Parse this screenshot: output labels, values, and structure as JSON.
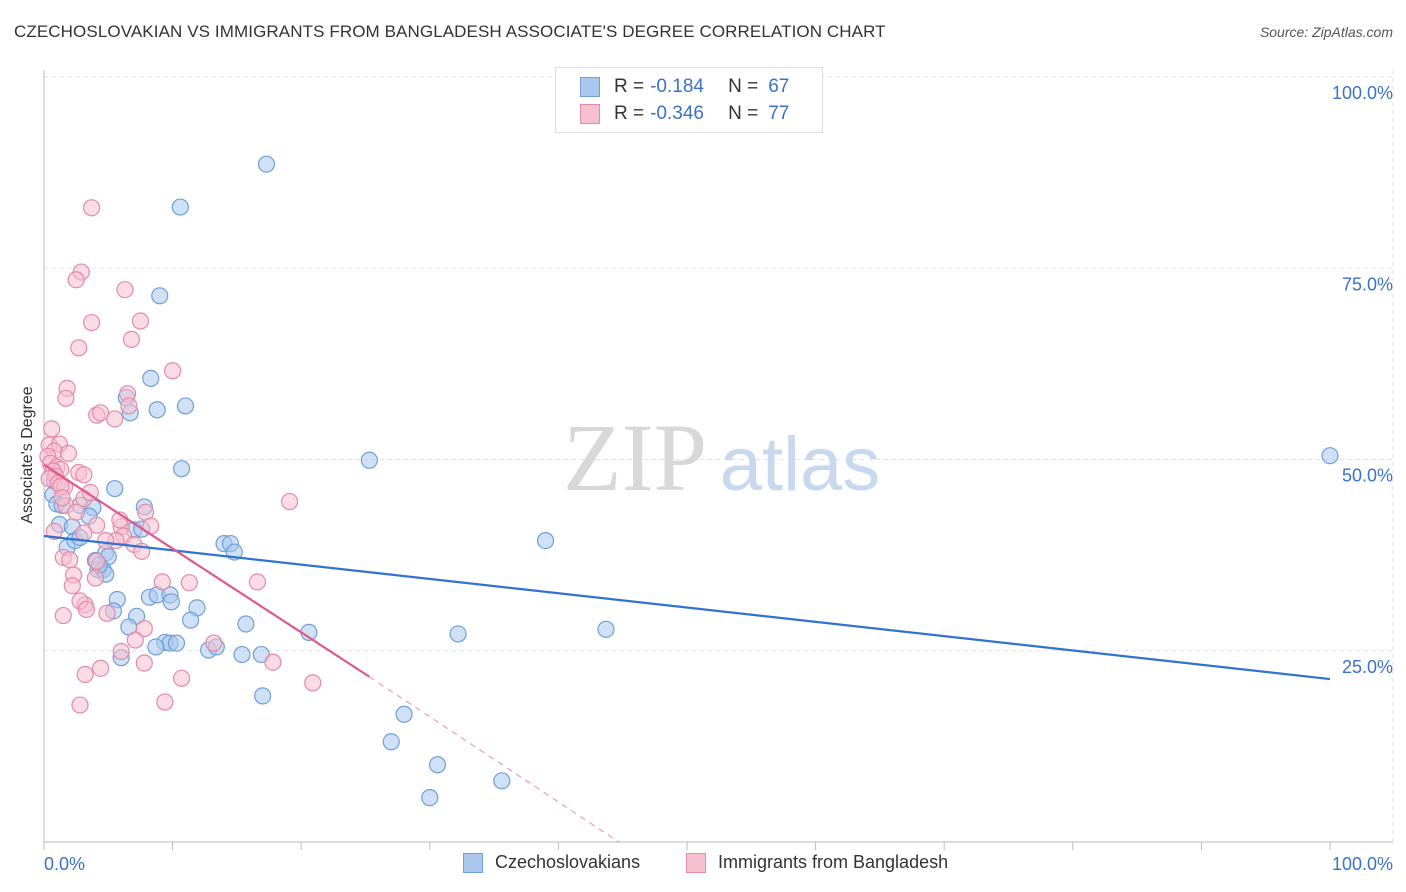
{
  "title": "CZECHOSLOVAKIAN VS IMMIGRANTS FROM BANGLADESH ASSOCIATE'S DEGREE CORRELATION CHART",
  "source": "Source: ZipAtlas.com",
  "watermark": {
    "zip": "ZIP",
    "atlas": "atlas"
  },
  "legend": {
    "rows": [
      {
        "r_label": "R =",
        "r_value": "-0.184",
        "n_label": "N =",
        "n_value": "67",
        "color": "#aac8ee",
        "border": "#6f9fd8"
      },
      {
        "r_label": "R =",
        "r_value": "-0.346",
        "n_label": "N =",
        "n_value": "77",
        "color": "#f7c0d0",
        "border": "#e48aa6"
      }
    ]
  },
  "bottom_legend": [
    {
      "label": "Czechoslovakians",
      "color": "#aac8ee",
      "border": "#6f9fd8"
    },
    {
      "label": "Immigrants from Bangladesh",
      "color": "#f7c0d0",
      "border": "#e48aa6"
    }
  ],
  "chart_data": {
    "type": "scatter",
    "title": "CZECHOSLOVAKIAN VS IMMIGRANTS FROM BANGLADESH ASSOCIATE'S DEGREE CORRELATION CHART",
    "xlabel": "",
    "ylabel": "Associate's Degree",
    "xlim": [
      0,
      100
    ],
    "ylim": [
      0,
      102
    ],
    "x_tick_labels": [
      "0.0%",
      "100.0%"
    ],
    "y_ticks": [
      25,
      50,
      75,
      100
    ],
    "y_tick_labels": [
      "25.0%",
      "50.0%",
      "75.0%",
      "100.0%"
    ],
    "grid": true,
    "legend_position": "top-center",
    "series": [
      {
        "name": "Czechoslovakians",
        "color": "#6f9fd8",
        "fill": "#aac8ee",
        "trend": {
          "x0": 0,
          "y0": 40,
          "x1": 100,
          "y1": 21.3,
          "color": "#2f72d0"
        },
        "points": [
          [
            17.3,
            88.6
          ],
          [
            10.6,
            83.0
          ],
          [
            9.0,
            71.4
          ],
          [
            8.3,
            60.6
          ],
          [
            6.4,
            58.1
          ],
          [
            8.8,
            56.5
          ],
          [
            11.0,
            57.0
          ],
          [
            6.7,
            56.1
          ],
          [
            10.7,
            48.8
          ],
          [
            25.3,
            49.9
          ],
          [
            100.0,
            50.5
          ],
          [
            0.7,
            45.4
          ],
          [
            1.0,
            44.2
          ],
          [
            2.8,
            44.0
          ],
          [
            3.8,
            43.7
          ],
          [
            7.8,
            43.8
          ],
          [
            3.5,
            42.6
          ],
          [
            5.5,
            46.2
          ],
          [
            1.2,
            41.5
          ],
          [
            2.2,
            41.2
          ],
          [
            1.8,
            38.5
          ],
          [
            2.4,
            39.4
          ],
          [
            4.8,
            37.8
          ],
          [
            7.0,
            40.8
          ],
          [
            14.0,
            39.0
          ],
          [
            14.5,
            39.0
          ],
          [
            14.8,
            37.9
          ],
          [
            39.0,
            39.4
          ],
          [
            4.0,
            36.8
          ],
          [
            4.2,
            35.6
          ],
          [
            4.6,
            35.6
          ],
          [
            4.8,
            35.0
          ],
          [
            5.7,
            31.7
          ],
          [
            8.2,
            32.0
          ],
          [
            8.8,
            32.3
          ],
          [
            9.8,
            32.3
          ],
          [
            9.9,
            31.4
          ],
          [
            11.9,
            30.6
          ],
          [
            5.4,
            30.2
          ],
          [
            7.2,
            29.5
          ],
          [
            11.4,
            29.0
          ],
          [
            15.7,
            28.5
          ],
          [
            6.6,
            28.1
          ],
          [
            20.6,
            27.4
          ],
          [
            32.2,
            27.2
          ],
          [
            43.7,
            27.8
          ],
          [
            9.4,
            26.1
          ],
          [
            9.8,
            26.0
          ],
          [
            10.3,
            26.0
          ],
          [
            8.7,
            25.5
          ],
          [
            12.8,
            25.1
          ],
          [
            13.4,
            25.5
          ],
          [
            15.4,
            24.5
          ],
          [
            16.9,
            24.5
          ],
          [
            6.0,
            24.1
          ],
          [
            17.0,
            19.1
          ],
          [
            28.0,
            16.7
          ],
          [
            27.0,
            13.1
          ],
          [
            30.6,
            10.1
          ],
          [
            35.6,
            8.0
          ],
          [
            30.0,
            5.8
          ],
          [
            7.6,
            40.9
          ],
          [
            5.0,
            37.3
          ],
          [
            2.8,
            39.8
          ],
          [
            0.8,
            47.2
          ],
          [
            1.4,
            44.0
          ],
          [
            4.3,
            36.2
          ]
        ]
      },
      {
        "name": "Immigrants from Bangladesh",
        "color": "#e48aa6",
        "fill": "#f7c0d0",
        "trend": {
          "x0": 0,
          "y0": 49.3,
          "x1": 25.3,
          "y1": 21.6,
          "color": "#e0588a"
        },
        "trend_dashed": {
          "x0": 25.3,
          "y0": 21.6,
          "x1": 44.7,
          "y1": 0
        },
        "points": [
          [
            3.7,
            82.9
          ],
          [
            2.9,
            74.5
          ],
          [
            2.5,
            73.5
          ],
          [
            6.3,
            72.2
          ],
          [
            3.7,
            67.9
          ],
          [
            7.5,
            68.1
          ],
          [
            6.8,
            65.7
          ],
          [
            2.7,
            64.6
          ],
          [
            10.0,
            61.6
          ],
          [
            1.8,
            59.3
          ],
          [
            1.7,
            58.0
          ],
          [
            6.5,
            58.6
          ],
          [
            6.6,
            57.0
          ],
          [
            4.1,
            55.8
          ],
          [
            4.4,
            56.1
          ],
          [
            5.5,
            55.3
          ],
          [
            0.6,
            54.0
          ],
          [
            0.4,
            51.9
          ],
          [
            1.2,
            52.0
          ],
          [
            0.8,
            51.1
          ],
          [
            1.9,
            50.8
          ],
          [
            0.3,
            50.4
          ],
          [
            0.5,
            49.5
          ],
          [
            1.0,
            49.0
          ],
          [
            1.3,
            48.7
          ],
          [
            0.7,
            48.5
          ],
          [
            0.9,
            47.8
          ],
          [
            2.7,
            48.3
          ],
          [
            3.1,
            48.0
          ],
          [
            0.4,
            47.5
          ],
          [
            1.1,
            46.9
          ],
          [
            1.6,
            46.4
          ],
          [
            1.3,
            46.5
          ],
          [
            3.1,
            44.9
          ],
          [
            1.7,
            44.0
          ],
          [
            2.5,
            43.1
          ],
          [
            19.1,
            44.5
          ],
          [
            7.9,
            43.1
          ],
          [
            4.1,
            41.4
          ],
          [
            8.3,
            41.3
          ],
          [
            6.0,
            41.2
          ],
          [
            0.8,
            40.6
          ],
          [
            3.1,
            40.4
          ],
          [
            6.2,
            40.0
          ],
          [
            5.6,
            39.4
          ],
          [
            7.0,
            38.9
          ],
          [
            7.6,
            38.0
          ],
          [
            1.5,
            37.2
          ],
          [
            2.0,
            36.9
          ],
          [
            4.1,
            36.7
          ],
          [
            2.3,
            34.9
          ],
          [
            4.0,
            34.5
          ],
          [
            2.2,
            33.5
          ],
          [
            9.2,
            34.0
          ],
          [
            11.3,
            33.9
          ],
          [
            16.6,
            34.0
          ],
          [
            3.2,
            31.0
          ],
          [
            2.8,
            31.5
          ],
          [
            3.3,
            30.4
          ],
          [
            4.9,
            29.9
          ],
          [
            1.5,
            29.6
          ],
          [
            7.8,
            27.9
          ],
          [
            7.1,
            26.4
          ],
          [
            13.2,
            26.0
          ],
          [
            6.0,
            24.9
          ],
          [
            7.8,
            23.4
          ],
          [
            17.8,
            23.5
          ],
          [
            4.4,
            22.7
          ],
          [
            10.7,
            21.4
          ],
          [
            20.9,
            20.8
          ],
          [
            3.2,
            21.9
          ],
          [
            9.4,
            18.3
          ],
          [
            2.8,
            17.9
          ],
          [
            3.6,
            45.7
          ],
          [
            1.4,
            45.0
          ],
          [
            5.9,
            42.1
          ],
          [
            4.8,
            39.4
          ]
        ]
      }
    ]
  }
}
